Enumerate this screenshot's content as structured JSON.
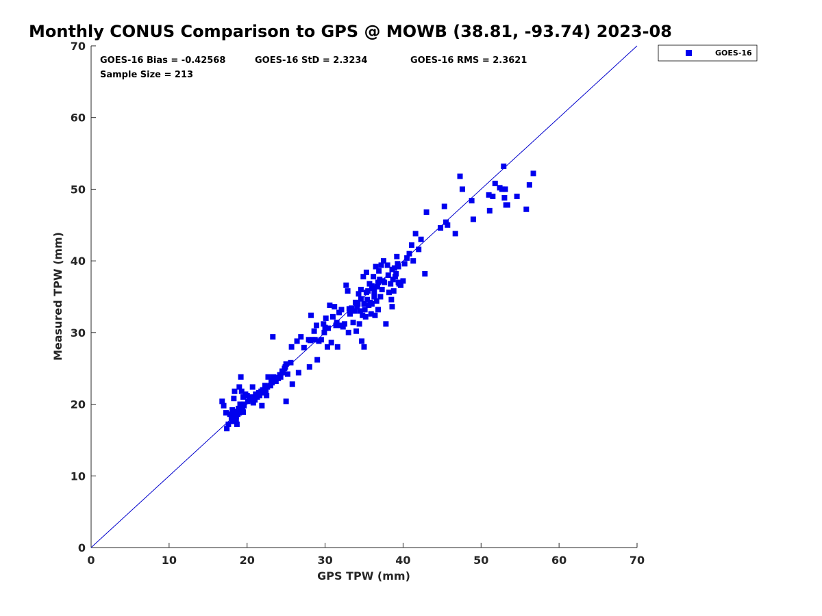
{
  "chart_data": {
    "type": "scatter",
    "title": "Monthly CONUS Comparison to GPS @ MOWB (38.81, -93.74) 2023-08",
    "xlabel": "GPS TPW (mm)",
    "ylabel": "Measured TPW (mm)",
    "xlim": [
      0,
      70
    ],
    "ylim": [
      0,
      70
    ],
    "xticks": [
      "0",
      "10",
      "20",
      "30",
      "40",
      "50",
      "60",
      "70"
    ],
    "yticks": [
      "0",
      "10",
      "20",
      "30",
      "40",
      "50",
      "60",
      "70"
    ],
    "grid": false,
    "legend_position": "top-right",
    "reference_line": {
      "from": [
        0,
        0
      ],
      "to": [
        70,
        70
      ],
      "color": "#0000cc"
    },
    "annotations": {
      "bias": "GOES-16 Bias = -0.42568",
      "std": "GOES-16 StD = 2.3234",
      "rms": "GOES-16 RMS = 2.3621",
      "sample_size": "Sample Size = 213"
    },
    "series": [
      {
        "name": "GOES-16",
        "color": "#0000ee",
        "marker": "square",
        "points": [
          [
            16.8,
            20.4
          ],
          [
            17.0,
            19.8
          ],
          [
            17.3,
            18.8
          ],
          [
            17.4,
            16.6
          ],
          [
            17.6,
            17.2
          ],
          [
            17.8,
            18.6
          ],
          [
            18.0,
            18.0
          ],
          [
            18.1,
            17.6
          ],
          [
            18.2,
            18.4
          ],
          [
            18.3,
            20.8
          ],
          [
            18.4,
            21.8
          ],
          [
            18.5,
            19.0
          ],
          [
            18.6,
            17.8
          ],
          [
            18.7,
            17.2
          ],
          [
            18.8,
            18.6
          ],
          [
            18.9,
            19.4
          ],
          [
            19.0,
            22.4
          ],
          [
            19.1,
            20.0
          ],
          [
            19.2,
            23.8
          ],
          [
            19.3,
            21.8
          ],
          [
            19.4,
            19.6
          ],
          [
            19.5,
            21.0
          ],
          [
            19.6,
            20.0
          ],
          [
            19.8,
            21.4
          ],
          [
            20.0,
            21.2
          ],
          [
            20.3,
            20.6
          ],
          [
            20.5,
            21.0
          ],
          [
            20.7,
            22.4
          ],
          [
            20.9,
            20.8
          ],
          [
            21.1,
            21.4
          ],
          [
            21.3,
            21.0
          ],
          [
            21.6,
            21.2
          ],
          [
            21.8,
            21.8
          ],
          [
            21.9,
            19.8
          ],
          [
            22.1,
            21.6
          ],
          [
            22.3,
            22.6
          ],
          [
            22.5,
            21.2
          ],
          [
            22.7,
            23.8
          ],
          [
            23.0,
            22.6
          ],
          [
            23.2,
            23.0
          ],
          [
            23.4,
            23.8
          ],
          [
            23.3,
            29.4
          ],
          [
            23.7,
            23.2
          ],
          [
            24.0,
            23.6
          ],
          [
            24.3,
            23.8
          ],
          [
            24.6,
            24.4
          ],
          [
            24.8,
            25.0
          ],
          [
            25.0,
            25.6
          ],
          [
            25.2,
            24.2
          ],
          [
            25.0,
            20.4
          ],
          [
            25.6,
            25.8
          ],
          [
            25.8,
            22.8
          ],
          [
            25.7,
            28.0
          ],
          [
            26.4,
            28.8
          ],
          [
            26.6,
            24.4
          ],
          [
            26.9,
            29.4
          ],
          [
            27.9,
            29.0
          ],
          [
            28.0,
            25.2
          ],
          [
            28.2,
            32.4
          ],
          [
            28.6,
            30.2
          ],
          [
            28.7,
            29.0
          ],
          [
            28.9,
            31.0
          ],
          [
            29.0,
            26.2
          ],
          [
            29.2,
            28.8
          ],
          [
            29.5,
            29.0
          ],
          [
            29.8,
            31.2
          ],
          [
            29.9,
            30.0
          ],
          [
            30.1,
            32.0
          ],
          [
            30.3,
            28.0
          ],
          [
            30.4,
            30.6
          ],
          [
            30.6,
            33.8
          ],
          [
            30.8,
            28.6
          ],
          [
            31.0,
            32.2
          ],
          [
            31.2,
            33.6
          ],
          [
            31.4,
            31.0
          ],
          [
            31.6,
            28.0
          ],
          [
            31.8,
            32.8
          ],
          [
            32.0,
            31.0
          ],
          [
            32.1,
            33.2
          ],
          [
            32.3,
            30.8
          ],
          [
            32.5,
            31.2
          ],
          [
            32.7,
            36.6
          ],
          [
            32.9,
            35.8
          ],
          [
            33.0,
            30.0
          ],
          [
            33.2,
            32.6
          ],
          [
            33.4,
            33.4
          ],
          [
            33.6,
            31.4
          ],
          [
            33.8,
            33.0
          ],
          [
            34.0,
            30.2
          ],
          [
            34.2,
            34.0
          ],
          [
            34.3,
            35.4
          ],
          [
            34.4,
            31.2
          ],
          [
            34.5,
            33.0
          ],
          [
            34.6,
            36.0
          ],
          [
            34.7,
            28.8
          ],
          [
            34.8,
            32.4
          ],
          [
            34.9,
            37.8
          ],
          [
            35.0,
            34.0
          ],
          [
            35.0,
            28.0
          ],
          [
            35.1,
            33.2
          ],
          [
            35.2,
            32.2
          ],
          [
            35.3,
            38.4
          ],
          [
            35.4,
            34.6
          ],
          [
            35.5,
            35.8
          ],
          [
            35.6,
            33.8
          ],
          [
            35.7,
            36.8
          ],
          [
            35.8,
            34.2
          ],
          [
            35.9,
            32.6
          ],
          [
            36.0,
            34.0
          ],
          [
            36.1,
            36.2
          ],
          [
            36.2,
            37.8
          ],
          [
            36.3,
            35.0
          ],
          [
            36.4,
            32.4
          ],
          [
            36.5,
            39.2
          ],
          [
            36.6,
            34.4
          ],
          [
            36.7,
            36.4
          ],
          [
            36.8,
            33.2
          ],
          [
            36.9,
            38.6
          ],
          [
            37.0,
            37.4
          ],
          [
            37.1,
            35.0
          ],
          [
            37.2,
            39.4
          ],
          [
            37.3,
            36.0
          ],
          [
            37.5,
            40.0
          ],
          [
            37.6,
            37.0
          ],
          [
            37.8,
            31.2
          ],
          [
            38.0,
            39.4
          ],
          [
            38.2,
            35.6
          ],
          [
            38.4,
            36.8
          ],
          [
            38.5,
            34.6
          ],
          [
            38.6,
            33.6
          ],
          [
            38.7,
            37.4
          ],
          [
            38.8,
            35.8
          ],
          [
            38.9,
            39.0
          ],
          [
            39.0,
            37.8
          ],
          [
            39.1,
            38.2
          ],
          [
            39.2,
            40.6
          ],
          [
            39.3,
            39.6
          ],
          [
            39.4,
            37.0
          ],
          [
            39.5,
            36.8
          ],
          [
            39.7,
            36.6
          ],
          [
            40.0,
            37.2
          ],
          [
            40.2,
            39.6
          ],
          [
            40.8,
            41.0
          ],
          [
            41.1,
            42.2
          ],
          [
            41.3,
            40.0
          ],
          [
            41.6,
            43.8
          ],
          [
            42.0,
            41.6
          ],
          [
            42.3,
            43.0
          ],
          [
            42.8,
            38.2
          ],
          [
            43.0,
            46.8
          ],
          [
            44.8,
            44.6
          ],
          [
            45.3,
            47.6
          ],
          [
            45.5,
            45.4
          ],
          [
            45.7,
            45.0
          ],
          [
            46.7,
            43.8
          ],
          [
            47.3,
            51.8
          ],
          [
            47.6,
            50.0
          ],
          [
            48.8,
            48.4
          ],
          [
            49.0,
            45.8
          ],
          [
            51.0,
            49.2
          ],
          [
            51.1,
            47.0
          ],
          [
            51.5,
            49.0
          ],
          [
            51.8,
            50.8
          ],
          [
            52.4,
            50.2
          ],
          [
            52.7,
            50.0
          ],
          [
            52.9,
            53.2
          ],
          [
            53.0,
            48.8
          ],
          [
            53.1,
            50.0
          ],
          [
            53.2,
            47.8
          ],
          [
            53.4,
            47.8
          ],
          [
            54.6,
            49.0
          ],
          [
            55.8,
            47.2
          ],
          [
            56.2,
            50.6
          ],
          [
            56.7,
            52.2
          ],
          [
            18.0,
            18.2
          ],
          [
            18.3,
            18.9
          ],
          [
            18.6,
            18.3
          ],
          [
            19.0,
            18.8
          ],
          [
            19.3,
            19.3
          ],
          [
            19.6,
            19.8
          ],
          [
            20.1,
            20.4
          ],
          [
            20.6,
            20.9
          ],
          [
            21.0,
            20.6
          ],
          [
            21.5,
            21.6
          ],
          [
            22.0,
            22.0
          ],
          [
            22.6,
            22.4
          ],
          [
            23.1,
            23.3
          ],
          [
            23.6,
            23.7
          ],
          [
            24.2,
            24.1
          ],
          [
            24.9,
            25.2
          ],
          [
            27.3,
            27.9
          ],
          [
            28.4,
            29.0
          ],
          [
            30.0,
            30.7
          ],
          [
            31.5,
            31.4
          ],
          [
            33.1,
            33.3
          ],
          [
            33.9,
            34.2
          ],
          [
            34.6,
            34.7
          ],
          [
            35.3,
            35.6
          ],
          [
            36.0,
            36.5
          ],
          [
            36.8,
            37.0
          ],
          [
            37.4,
            37.2
          ],
          [
            38.1,
            38.0
          ],
          [
            38.6,
            38.8
          ],
          [
            39.4,
            39.2
          ],
          [
            40.5,
            40.4
          ],
          [
            18.1,
            19.2
          ],
          [
            19.5,
            18.9
          ],
          [
            20.8,
            20.2
          ],
          [
            22.4,
            21.9
          ],
          [
            24.5,
            24.6
          ],
          [
            28.1,
            28.9
          ],
          [
            34.1,
            33.6
          ],
          [
            36.3,
            35.7
          ]
        ]
      }
    ]
  }
}
